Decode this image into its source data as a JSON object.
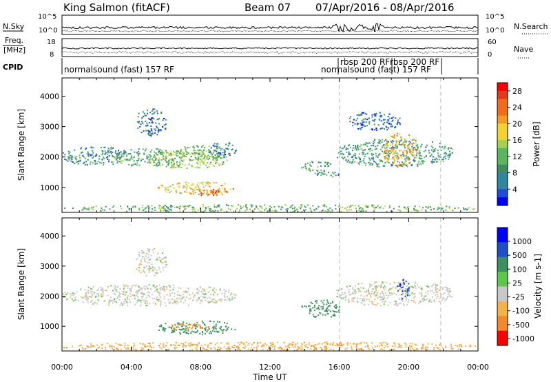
{
  "header": {
    "station": "King Salmon (fitACF)",
    "beam": "Beam 07",
    "date_range": "07/Apr/2016 - 08/Apr/2016"
  },
  "left_labels": {
    "nsky": "N.Sky",
    "freq_line1": "Freq.",
    "freq_line2": "[MHz]",
    "cpid": "CPID"
  },
  "right_labels": {
    "nsearch": "N.Search",
    "nave": "Nave"
  },
  "cpid_texts": [
    {
      "text": "normalsound (fast) 157 RF",
      "hour": 0.1
    },
    {
      "text": "rbsp 200 RF",
      "hour": 16.05
    },
    {
      "text": "rbsp 200 RF",
      "hour": 18.95
    },
    {
      "text": "normalsound (fast) 157 RF",
      "hour": 13.9
    }
  ],
  "noise_panel": {
    "left_ticks": [
      "10^5",
      "10^0"
    ],
    "right_ticks": [
      "10^5",
      "10^0"
    ]
  },
  "freq_panel": {
    "left_ticks": [
      "18",
      "8"
    ],
    "right_ticks": [
      "60",
      "0"
    ]
  },
  "time_axis": {
    "label": "Time UT",
    "ticks": [
      "00:00",
      "04:00",
      "08:00",
      "12:00",
      "16:00",
      "20:00",
      "00:00"
    ],
    "range_hours": [
      0,
      24
    ]
  },
  "colors": {
    "power": [
      "#0000ff",
      "#1d4fd6",
      "#2f86a0",
      "#3c8f5c",
      "#59b85e",
      "#a2d24e",
      "#f2d22e",
      "#f59a22",
      "#f36a1c",
      "#e33a1a",
      "#ff0000"
    ],
    "velocity": [
      "#ff0000",
      "#f08a2a",
      "#f3b24a",
      "#c8c8c8",
      "#5cc84a",
      "#3a8f5c",
      "#1f4fc8",
      "#0000ff"
    ],
    "dashed_line": "#bbbbbb"
  },
  "chart_data": [
    {
      "type": "heatmap",
      "name_hint": "power panel",
      "ylabel": "Slant Range [km]",
      "xlabel": "",
      "xlim": [
        0,
        24
      ],
      "ylim": [
        180,
        4600
      ],
      "yticks": [
        "1000",
        "2000",
        "3000",
        "4000"
      ],
      "colorbar": {
        "label": "Power [dB]",
        "ticks": [
          "4",
          "8",
          "12",
          "16",
          "20",
          "24",
          "28"
        ],
        "range": [
          0,
          30
        ]
      },
      "regions": [
        {
          "x": [
            0.0,
            4.0
          ],
          "y": [
            1750,
            2350
          ],
          "value": 8
        },
        {
          "x": [
            3.0,
            6.5
          ],
          "y": [
            1700,
            2300
          ],
          "value": 11
        },
        {
          "x": [
            5.0,
            9.5
          ],
          "y": [
            1650,
            2250
          ],
          "value": 14
        },
        {
          "x": [
            6.5,
            9.5
          ],
          "y": [
            1900,
            2400
          ],
          "value": 12
        },
        {
          "x": [
            8.5,
            10.0
          ],
          "y": [
            2000,
            2500
          ],
          "value": 6
        },
        {
          "x": [
            4.2,
            6.0
          ],
          "y": [
            2700,
            3600
          ],
          "value": 5
        },
        {
          "x": [
            5.5,
            10.0
          ],
          "y": [
            800,
            1200
          ],
          "value": 18
        },
        {
          "x": [
            7.0,
            9.5
          ],
          "y": [
            750,
            1000
          ],
          "value": 24
        },
        {
          "x": [
            13.8,
            15.5
          ],
          "y": [
            1550,
            1900
          ],
          "value": 10
        },
        {
          "x": [
            14.5,
            16.0
          ],
          "y": [
            1350,
            1550
          ],
          "value": 8
        },
        {
          "x": [
            15.8,
            22.5
          ],
          "y": [
            1700,
            2600
          ],
          "value": 9
        },
        {
          "x": [
            18.5,
            20.5
          ],
          "y": [
            1700,
            2800
          ],
          "value": 20
        },
        {
          "x": [
            16.5,
            19.5
          ],
          "y": [
            2900,
            3500
          ],
          "value": 5
        },
        {
          "x": [
            0.0,
            24.0
          ],
          "y": [
            200,
            450
          ],
          "value": 12
        }
      ]
    },
    {
      "type": "heatmap",
      "name_hint": "velocity panel",
      "ylabel": "Slant Range [km]",
      "xlabel": "Time UT",
      "xlim": [
        0,
        24
      ],
      "ylim": [
        180,
        4600
      ],
      "yticks": [
        "1000",
        "2000",
        "3000",
        "4000"
      ],
      "colorbar": {
        "label": "Velocity [m s-1]",
        "ticks": [
          "1000",
          "500",
          "100",
          "25",
          "-25",
          "-100",
          "-500",
          "-1000"
        ],
        "range": [
          -1000,
          1000
        ]
      },
      "regions": [
        {
          "x": [
            0.0,
            10.0
          ],
          "y": [
            1700,
            2400
          ],
          "value": 0
        },
        {
          "x": [
            4.2,
            6.0
          ],
          "y": [
            2700,
            3600
          ],
          "value": 0
        },
        {
          "x": [
            5.5,
            10.0
          ],
          "y": [
            750,
            1200
          ],
          "value": 150
        },
        {
          "x": [
            6.0,
            8.5
          ],
          "y": [
            900,
            1100
          ],
          "value": -150
        },
        {
          "x": [
            13.8,
            16.0
          ],
          "y": [
            1300,
            1900
          ],
          "value": 150
        },
        {
          "x": [
            15.8,
            22.5
          ],
          "y": [
            1700,
            2500
          ],
          "value": 0
        },
        {
          "x": [
            19.3,
            20.0
          ],
          "y": [
            1900,
            2600
          ],
          "value": 800
        },
        {
          "x": [
            0.0,
            24.0
          ],
          "y": [
            200,
            500
          ],
          "value": -80
        }
      ]
    }
  ]
}
